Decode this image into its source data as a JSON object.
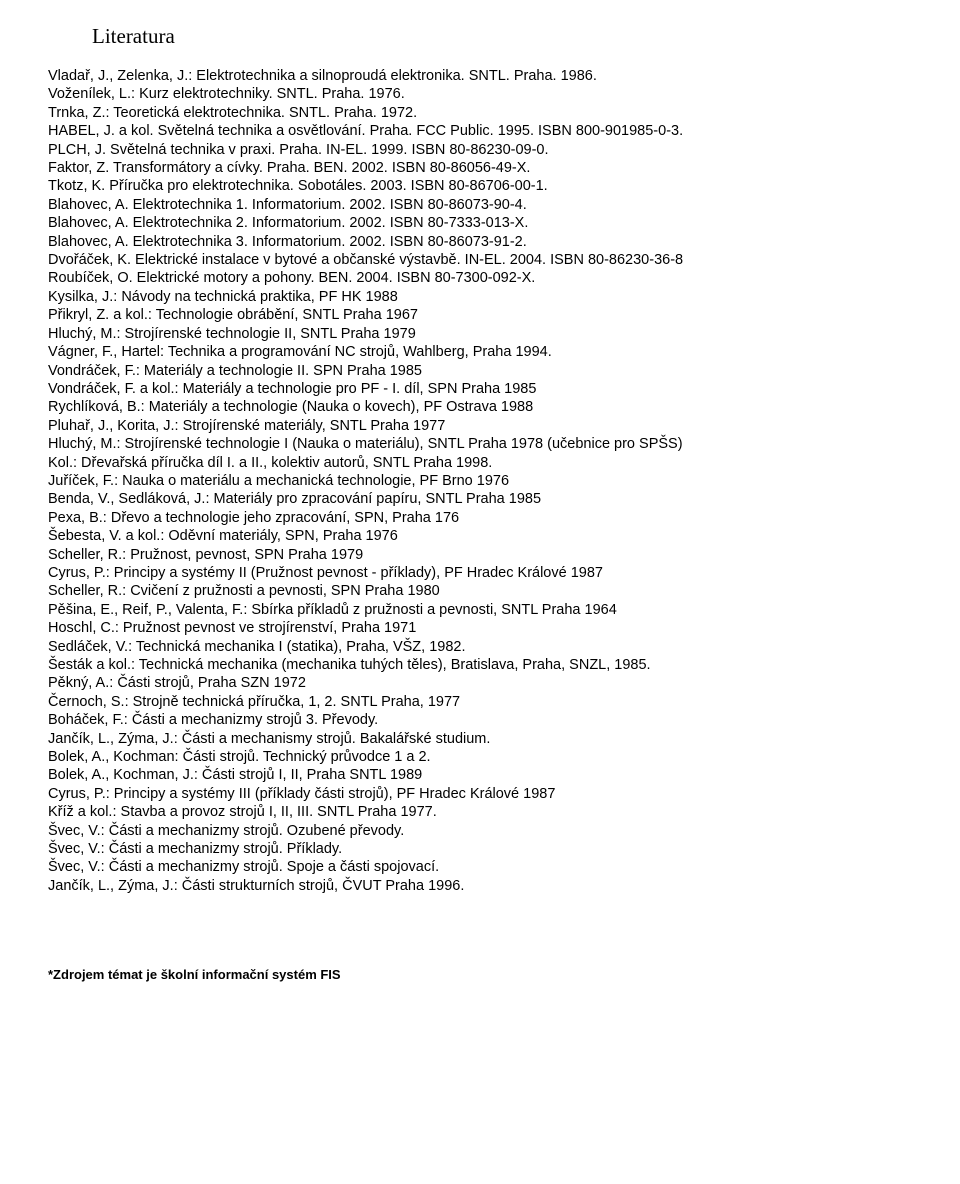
{
  "title": "Literatura",
  "references": [
    "Vladař, J., Zelenka, J.: Elektrotechnika a silnoproudá elektronika. SNTL. Praha. 1986.",
    "Voženílek, L.: Kurz elektrotechniky. SNTL. Praha. 1976.",
    "Trnka, Z.: Teoretická elektrotechnika. SNTL. Praha. 1972.",
    "HABEL, J. a kol. Světelná technika a osvětlování. Praha. FCC Public. 1995. ISBN 800-901985-0-3.",
    "PLCH, J. Světelná technika v praxi. Praha. IN-EL. 1999. ISBN 80-86230-09-0.",
    "Faktor, Z. Transformátory a cívky. Praha. BEN. 2002. ISBN 80-86056-49-X.",
    "Tkotz, K. Příručka pro elektrotechnika. Sobotáles. 2003. ISBN 80-86706-00-1.",
    "Blahovec, A. Elektrotechnika 1. Informatorium. 2002. ISBN 80-86073-90-4.",
    "Blahovec, A. Elektrotechnika 2. Informatorium. 2002. ISBN 80-7333-013-X.",
    "Blahovec, A. Elektrotechnika 3. Informatorium. 2002. ISBN 80-86073-91-2.",
    "Dvořáček, K. Elektrické instalace v bytové a občanské výstavbě. IN-EL. 2004. ISBN 80-86230-36-8",
    "Roubíček, O. Elektrické motory a pohony. BEN. 2004. ISBN 80-7300-092-X.",
    "Kysilka, J.: Návody na technická praktika, PF HK 1988",
    "Přikryl, Z. a kol.: Technologie obrábění, SNTL Praha 1967",
    "Hluchý, M.: Strojírenské technologie II, SNTL Praha 1979",
    "Vágner, F., Hartel: Technika a programování NC strojů, Wahlberg, Praha 1994.",
    "Vondráček, F.: Materiály a technologie II. SPN Praha 1985",
    "Vondráček, F. a kol.: Materiály a technologie pro PF - I. díl, SPN Praha 1985",
    "Rychlíková, B.: Materiály a technologie (Nauka o kovech), PF Ostrava 1988",
    "Pluhař, J., Korita, J.: Strojírenské materiály, SNTL Praha 1977",
    "Hluchý, M.: Strojírenské technologie I (Nauka o materiálu), SNTL Praha 1978 (učebnice pro SPŠS)",
    "Kol.: Dřevařská příručka díl I. a II., kolektiv autorů, SNTL Praha 1998.",
    "Juříček, F.: Nauka o materiálu a mechanická technologie, PF Brno 1976",
    "Benda, V., Sedláková, J.: Materiály pro zpracování papíru, SNTL Praha 1985",
    "Pexa, B.: Dřevo a technologie jeho zpracování, SPN, Praha 176",
    "Šebesta, V. a kol.: Oděvní materiály, SPN, Praha 1976",
    "Scheller, R.: Pružnost, pevnost, SPN Praha 1979",
    "Cyrus, P.: Principy a systémy II (Pružnost pevnost - příklady), PF Hradec Králové 1987",
    "Scheller, R.: Cvičení z pružnosti a pevnosti, SPN Praha 1980",
    "Pěšina, E., Reif, P., Valenta, F.: Sbírka příkladů z pružnosti a pevnosti, SNTL Praha 1964",
    "Hoschl, C.: Pružnost pevnost ve strojírenství, Praha 1971",
    "Sedláček, V.: Technická mechanika I (statika), Praha, VŠZ, 1982.",
    "Šesták a kol.: Technická mechanika (mechanika tuhých těles), Bratislava, Praha, SNZL, 1985.",
    "Pěkný, A.: Části strojů, Praha SZN 1972",
    "Černoch, S.: Strojně technická příručka, 1, 2. SNTL Praha, 1977",
    "Boháček, F.: Části a mechanizmy strojů 3. Převody.",
    "Jančík, L., Zýma, J.: Části a mechanismy strojů. Bakalářské studium.",
    "Bolek, A., Kochman: Části strojů. Technický průvodce 1 a 2.",
    "Bolek, A., Kochman, J.: Části strojů I, II, Praha SNTL 1989",
    "Cyrus, P.: Principy a systémy III (příklady části strojů), PF Hradec Králové 1987",
    "Kříž a kol.: Stavba a provoz strojů I, II, III. SNTL Praha 1977.",
    "Švec, V.: Části a mechanizmy strojů. Ozubené převody.",
    "Švec, V.: Části a mechanizmy strojů. Příklady.",
    "Švec, V.: Části a mechanizmy strojů. Spoje a části spojovací.",
    "Jančík, L., Zýma, J.: Části strukturních strojů, ČVUT Praha 1996."
  ],
  "footnote": "*Zdrojem témat je školní informační systém FIS"
}
